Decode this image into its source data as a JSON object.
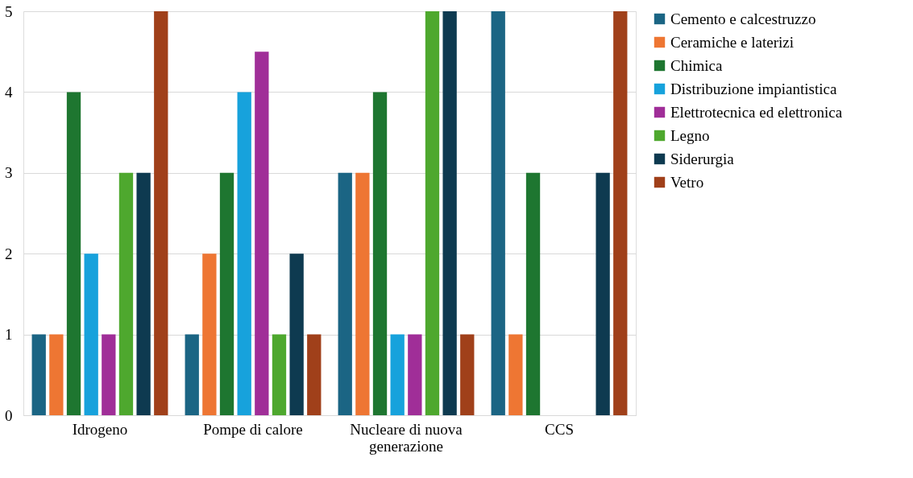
{
  "chart_data": {
    "type": "bar",
    "categories": [
      "Idrogeno",
      "Pompe di calore",
      "Nucleare di nuova generazione",
      "CCS"
    ],
    "series": [
      {
        "name": "Cemento e calcestruzzo",
        "color": "#1b6584",
        "values": [
          1,
          1,
          3,
          5
        ]
      },
      {
        "name": "Ceramiche e laterizi",
        "color": "#ee7633",
        "values": [
          1,
          2,
          3,
          1
        ]
      },
      {
        "name": "Chimica",
        "color": "#1e7630",
        "values": [
          4,
          3,
          4,
          3
        ]
      },
      {
        "name": "Distribuzione impiantistica",
        "color": "#17a2dc",
        "values": [
          2,
          4,
          1,
          0
        ]
      },
      {
        "name": "Elettrotecnica ed elettronica",
        "color": "#a02e98",
        "values": [
          1,
          4.5,
          1,
          0
        ]
      },
      {
        "name": "Legno",
        "color": "#4ea82e",
        "values": [
          3,
          1,
          5,
          0
        ]
      },
      {
        "name": "Siderurgia",
        "color": "#0e3a50",
        "values": [
          3,
          2,
          5,
          3
        ]
      },
      {
        "name": "Vetro",
        "color": "#a0401a",
        "values": [
          5,
          1,
          1,
          5
        ]
      }
    ],
    "ylim": [
      0,
      5
    ],
    "yticks": [
      0,
      1,
      2,
      3,
      4,
      5
    ],
    "grid": "y",
    "legend": "right"
  }
}
